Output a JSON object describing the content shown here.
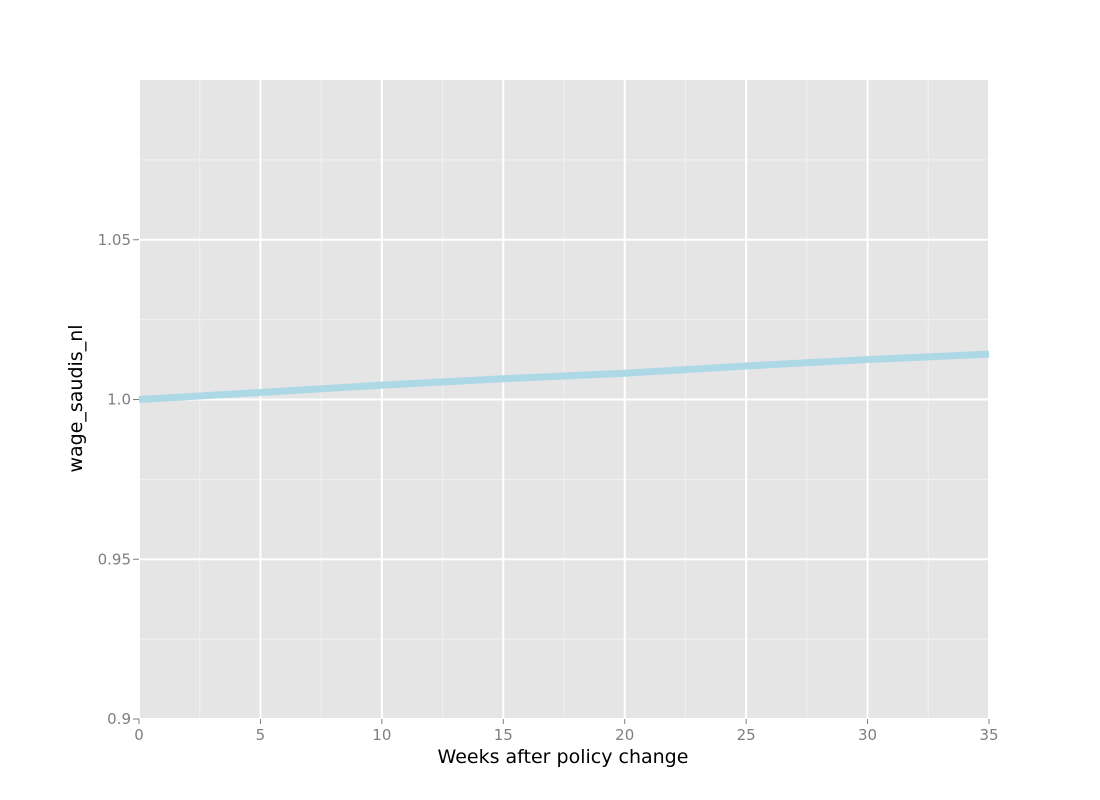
{
  "chart_data": {
    "type": "line",
    "title": "",
    "xlabel": "Weeks after policy change",
    "ylabel": "wage_saudis_nl",
    "xlim": [
      0,
      35
    ],
    "ylim": [
      0.9,
      1.1
    ],
    "x_ticks": [
      0,
      5,
      10,
      15,
      20,
      25,
      30,
      35
    ],
    "x_tick_labels": [
      "0",
      "5",
      "10",
      "15",
      "20",
      "25",
      "30",
      "35"
    ],
    "y_ticks": [
      0.9,
      0.95,
      1.0,
      1.05
    ],
    "y_tick_labels": [
      "0.9",
      "0.95",
      "1.0",
      "1.05"
    ],
    "grid": true,
    "legend": "none",
    "series": [
      {
        "color": "#add8e6",
        "x": [
          0,
          5,
          10,
          15,
          20,
          25,
          30,
          35
        ],
        "y": [
          1.0,
          1.0022,
          1.0045,
          1.0065,
          1.0082,
          1.0105,
          1.0125,
          1.0142
        ]
      }
    ],
    "colors": {
      "panel_background": "#e5e5e5",
      "major_grid": "#ffffff",
      "minor_grid": "#f0f0f0",
      "tick_text": "#7f7f7f"
    }
  }
}
